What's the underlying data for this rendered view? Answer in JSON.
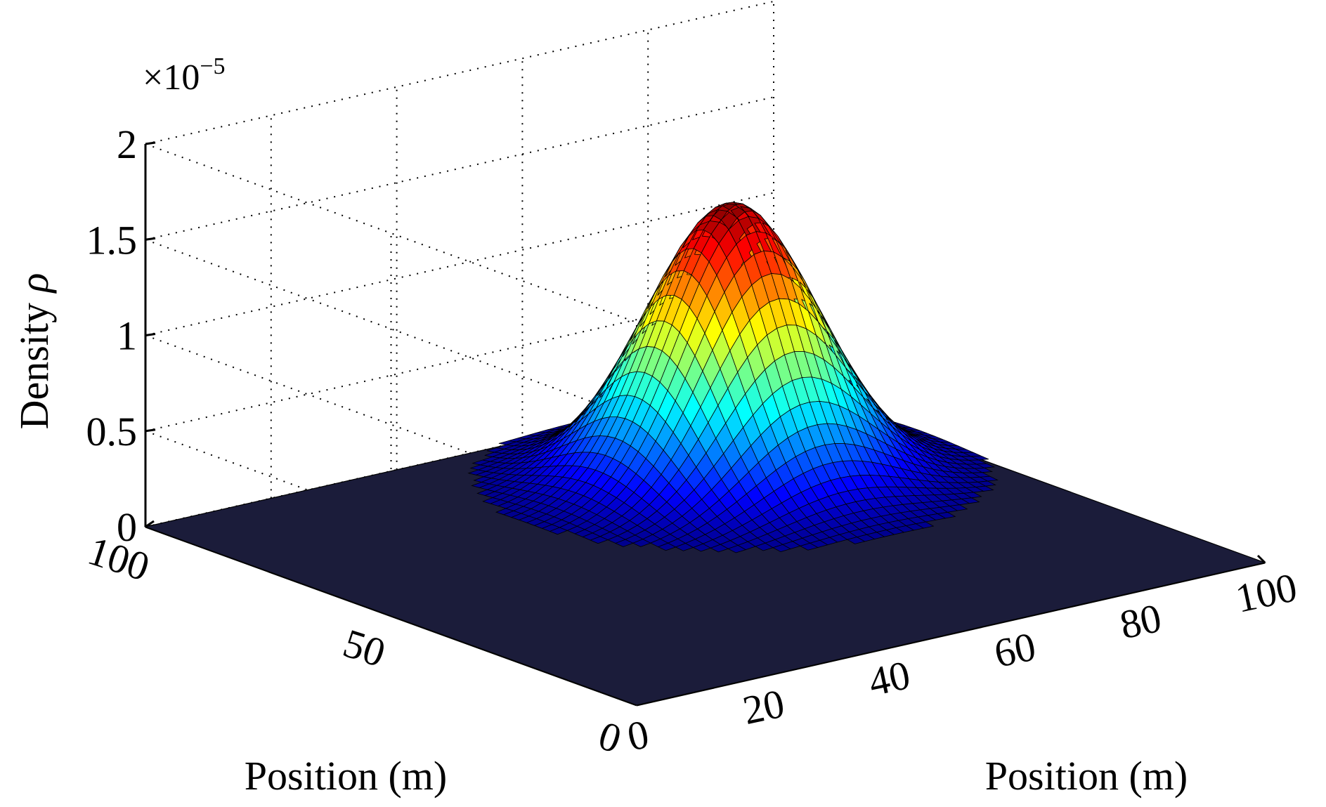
{
  "chart_data": {
    "type": "surface",
    "title": "",
    "zlabel_prefix": "Density ",
    "zlabel_symbol": "ρ",
    "x_axis_label": "Position (m)",
    "y_axis_label": "Position (m)",
    "z_exponent_base": "×10",
    "z_exponent_power": "−5",
    "x_range": [
      0,
      100
    ],
    "y_range": [
      0,
      100
    ],
    "z_range": [
      0,
      2
    ],
    "z_multiplier": 1e-05,
    "x_ticks": [
      {
        "value": 0,
        "label": "0"
      },
      {
        "value": 20,
        "label": "20"
      },
      {
        "value": 40,
        "label": "40"
      },
      {
        "value": 60,
        "label": "60"
      },
      {
        "value": 80,
        "label": "80"
      },
      {
        "value": 100,
        "label": "100"
      }
    ],
    "y_ticks": [
      {
        "value": 0,
        "label": "0"
      },
      {
        "value": 50,
        "label": "50"
      },
      {
        "value": 100,
        "label": "100"
      }
    ],
    "z_ticks": [
      {
        "value": 0,
        "label": "0"
      },
      {
        "value": 0.5,
        "label": "0.5"
      },
      {
        "value": 1,
        "label": "1"
      },
      {
        "value": 1.5,
        "label": "1.5"
      },
      {
        "value": 2,
        "label": "2"
      }
    ],
    "grid": true,
    "colormap": "jet",
    "surface": {
      "shape": "gaussian",
      "peak_x": 70,
      "peak_y": 70,
      "peak_value": 1.45,
      "sigma_x": 11,
      "sigma_y": 11
    }
  }
}
